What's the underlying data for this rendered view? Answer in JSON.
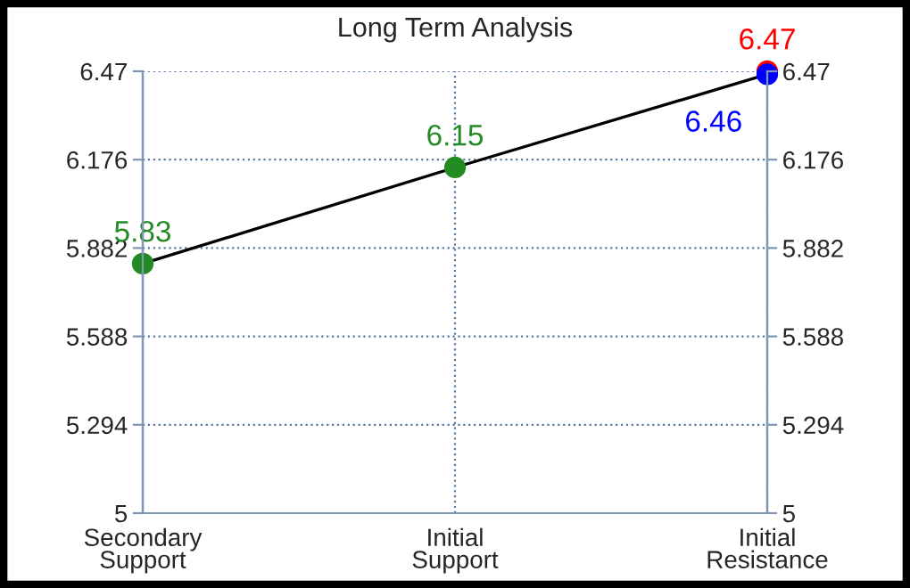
{
  "chart_data": {
    "type": "line",
    "title": "Long Term Analysis",
    "categories": [
      "Secondary\nSupport",
      "Initial\nSupport",
      "Initial\nResistance"
    ],
    "series": [
      {
        "color": "#000000",
        "colors": [
          "#228b22",
          "#228b22",
          "#0000ff"
        ],
        "values": [
          5.83,
          6.15,
          6.46
        ]
      },
      {
        "type": "scatter",
        "color": "#ff0000",
        "values": [
          null,
          null,
          6.47
        ]
      }
    ],
    "ylim": [
      5,
      6.47
    ],
    "yticks": [
      5,
      5.294,
      5.588,
      5.882,
      6.176,
      6.47
    ],
    "y2lim": [
      5,
      6.47
    ],
    "y2ticks": [
      5,
      5.294,
      5.588,
      5.882,
      6.176,
      6.47
    ],
    "grid": true,
    "data_labels": true,
    "marker": "circle"
  }
}
